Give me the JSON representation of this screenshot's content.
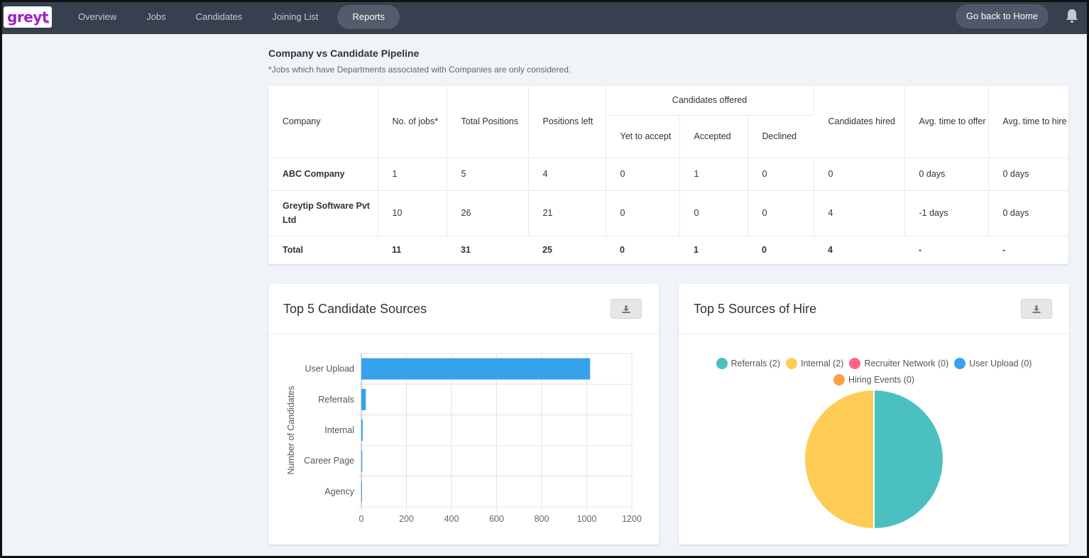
{
  "nav": {
    "logo_text": "greyt",
    "logo_sub": "HR",
    "items": [
      "Overview",
      "Jobs",
      "Candidates",
      "Joining List",
      "Reports"
    ],
    "active": "Reports",
    "home_button": "Go back to Home"
  },
  "pipeline": {
    "title": "Company vs Candidate Pipeline",
    "subtitle": "*Jobs which have Departments associated with Companies are only considered.",
    "headers": {
      "company": "Company",
      "jobs": "No. of jobs*",
      "total_positions": "Total Positions",
      "positions_left": "Positions left",
      "offered_group": "Candidates offered",
      "yet_to_accept": "Yet to accept",
      "accepted": "Accepted",
      "declined": "Declined",
      "hired": "Candidates hired",
      "avg_offer": "Avg. time to offer",
      "avg_hire": "Avg. time to hire"
    },
    "rows": [
      [
        "ABC Company",
        "1",
        "5",
        "4",
        "0",
        "1",
        "0",
        "0",
        "0 days",
        "0 days"
      ],
      [
        "Greytip Software Pvt Ltd",
        "10",
        "26",
        "21",
        "0",
        "0",
        "0",
        "4",
        "-1 days",
        "0 days"
      ]
    ],
    "total": [
      "Total",
      "11",
      "31",
      "25",
      "0",
      "1",
      "0",
      "4",
      "-",
      "-"
    ]
  },
  "sources_card": {
    "title": "Top 5 Candidate Sources",
    "download_icon": "download-icon"
  },
  "hire_card": {
    "title": "Top 5 Sources of Hire",
    "download_icon": "download-icon"
  },
  "chart_data": [
    {
      "type": "bar",
      "orientation": "horizontal",
      "categories": [
        "User Upload",
        "Referrals",
        "Internal",
        "Career Page",
        "Agency"
      ],
      "values": [
        1015,
        20,
        6,
        4,
        1
      ],
      "ylabel": "Number of Candidates",
      "xlim": [
        0,
        1200
      ],
      "xticks": [
        0,
        200,
        400,
        600,
        800,
        1000,
        1200
      ],
      "color": "#36a2eb",
      "grid": true
    },
    {
      "type": "pie",
      "labels": [
        "Referrals (2)",
        "Internal (2)",
        "Recruiter Network (0)",
        "User Upload (0)",
        "Hiring Events (0)"
      ],
      "values": [
        2,
        2,
        0,
        0,
        0
      ],
      "colors": [
        "#4bc0c0",
        "#ffcd56",
        "#ff6384",
        "#36a2eb",
        "#ff9f40"
      ],
      "legend": "top"
    }
  ]
}
